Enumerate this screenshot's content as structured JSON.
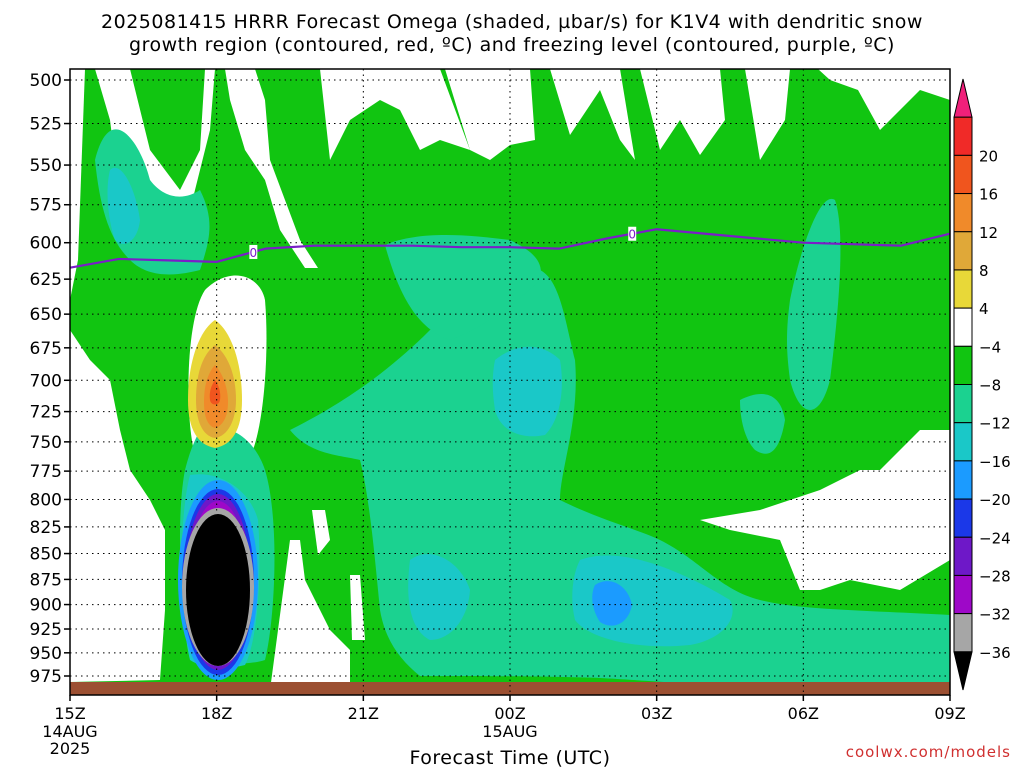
{
  "title_line1": "2025081415 HRRR Forecast Omega (shaded, µbar/s) for K1V4 with dendritic snow",
  "title_line2": "growth region (contoured, red, ºC) and freezing level (contoured, purple, ºC)",
  "credit": "coolwx.com/models",
  "chart_data": {
    "type": "heatmap",
    "xlabel": "Forecast Time (UTC)",
    "x_ticks": [
      {
        "label": "15Z",
        "sub": [
          "14AUG",
          "2025"
        ]
      },
      {
        "label": "18Z",
        "sub": []
      },
      {
        "label": "21Z",
        "sub": []
      },
      {
        "label": "00Z",
        "sub": [
          "15AUG"
        ]
      },
      {
        "label": "03Z",
        "sub": []
      },
      {
        "label": "06Z",
        "sub": []
      },
      {
        "label": "09Z",
        "sub": []
      }
    ],
    "x_range_hours": [
      0,
      18
    ],
    "y_levels_hpa": [
      500,
      525,
      550,
      575,
      600,
      625,
      650,
      675,
      700,
      725,
      750,
      775,
      800,
      825,
      850,
      875,
      900,
      925,
      950,
      975
    ],
    "y_log_scale": true,
    "grid": true,
    "colorbar": {
      "labels": [
        "20",
        "16",
        "12",
        "8",
        "4",
        "−4",
        "−8",
        "−12",
        "−16",
        "−20",
        "−24",
        "−28",
        "−32",
        "−36"
      ],
      "colors": [
        "#f0207a",
        "#f02a28",
        "#f0551e",
        "#f08a2a",
        "#e0a838",
        "#e8d838",
        "#ffffff",
        "#11c511",
        "#1bd290",
        "#1ac8c8",
        "#1b9bff",
        "#1b38e8",
        "#6e18c8",
        "#9e08c8",
        "#a6a6a6",
        "#000000"
      ]
    },
    "freezing_level": {
      "label": "0",
      "points": [
        [
          0,
          617
        ],
        [
          1,
          611
        ],
        [
          2,
          612
        ],
        [
          3,
          613
        ],
        [
          4,
          604
        ],
        [
          5,
          602
        ],
        [
          6,
          602
        ],
        [
          7,
          602
        ],
        [
          8,
          603
        ],
        [
          9,
          603
        ],
        [
          10,
          604
        ],
        [
          11,
          597
        ],
        [
          12,
          591
        ],
        [
          13,
          594
        ],
        [
          14,
          597
        ],
        [
          15,
          600
        ],
        [
          16,
          601
        ],
        [
          17,
          602
        ],
        [
          18,
          594
        ]
      ]
    },
    "dendritic_snow_growth_region": "none shown",
    "omega_extremes": {
      "max_region": {
        "hour": 3,
        "level_hpa": 700,
        "value": "8 to 12"
      },
      "min_region": {
        "hour": 3,
        "level_hpa": 875,
        "value": "< -36"
      }
    }
  }
}
